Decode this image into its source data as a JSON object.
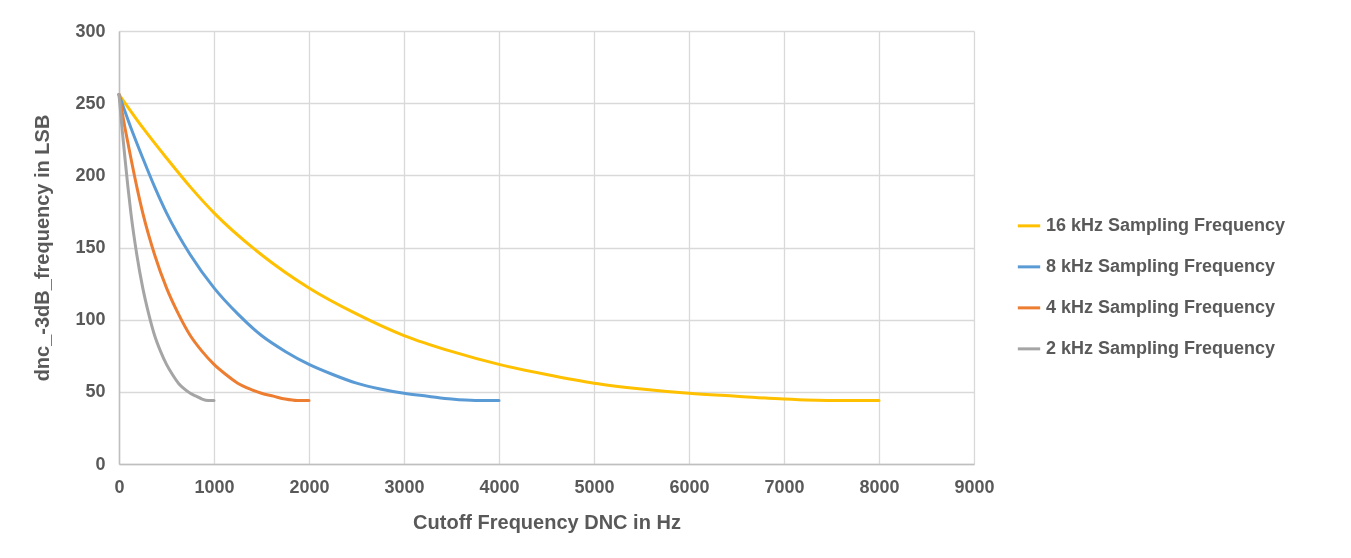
{
  "chart_data": {
    "type": "line",
    "xlabel": "Cutoff Frequency DNC in Hz",
    "ylabel": "dnc_-3dB_frequency in LSB",
    "xlim": [
      0,
      9000
    ],
    "xticks": [
      0,
      1000,
      2000,
      3000,
      4000,
      5000,
      6000,
      7000,
      8000,
      9000
    ],
    "ylim": [
      0,
      300
    ],
    "yticks": [
      0,
      50,
      100,
      150,
      200,
      250,
      300
    ],
    "grid": true,
    "legend": "right",
    "marker": "none",
    "series": [
      {
        "name": "16 kHz Sampling Frequency",
        "color": "#ffc000",
        "x": [
          0,
          250,
          500,
          750,
          1000,
          1500,
          2000,
          2500,
          3000,
          3500,
          4000,
          4500,
          5000,
          5500,
          6000,
          6500,
          7000,
          7500,
          8000
        ],
        "values": [
          256,
          233,
          212,
          192,
          174,
          145,
          122,
          104,
          89,
          78,
          69,
          62,
          56,
          52,
          49,
          47,
          45,
          44,
          44
        ]
      },
      {
        "name": "8 kHz Sampling Frequency",
        "color": "#5b9bd5",
        "x": [
          0,
          125,
          250,
          375,
          500,
          750,
          1000,
          1250,
          1500,
          1750,
          2000,
          2250,
          2500,
          2750,
          3000,
          3250,
          3500,
          3750,
          4000
        ],
        "values": [
          256,
          233,
          212,
          192,
          174,
          145,
          122,
          104,
          89,
          78,
          69,
          62,
          56,
          52,
          49,
          47,
          45,
          44,
          44
        ]
      },
      {
        "name": "4 kHz Sampling Frequency",
        "color": "#ed7d31",
        "x": [
          0,
          62.5,
          125,
          187.5,
          250,
          375,
          500,
          625,
          750,
          875,
          1000,
          1125,
          1250,
          1375,
          1500,
          1625,
          1750,
          1875,
          2000
        ],
        "values": [
          256,
          233,
          212,
          192,
          174,
          145,
          122,
          104,
          89,
          78,
          69,
          62,
          56,
          52,
          49,
          47,
          45,
          44,
          44
        ]
      },
      {
        "name": "2 kHz Sampling Frequency",
        "color": "#a5a5a5",
        "x": [
          0,
          31.25,
          62.5,
          93.75,
          125,
          187.5,
          250,
          312.5,
          375,
          437.5,
          500,
          562.5,
          625,
          687.5,
          750,
          812.5,
          875,
          937.5,
          1000
        ],
        "values": [
          256,
          233,
          212,
          192,
          174,
          145,
          122,
          104,
          89,
          78,
          69,
          62,
          56,
          52,
          49,
          47,
          45,
          44,
          44
        ]
      }
    ]
  }
}
